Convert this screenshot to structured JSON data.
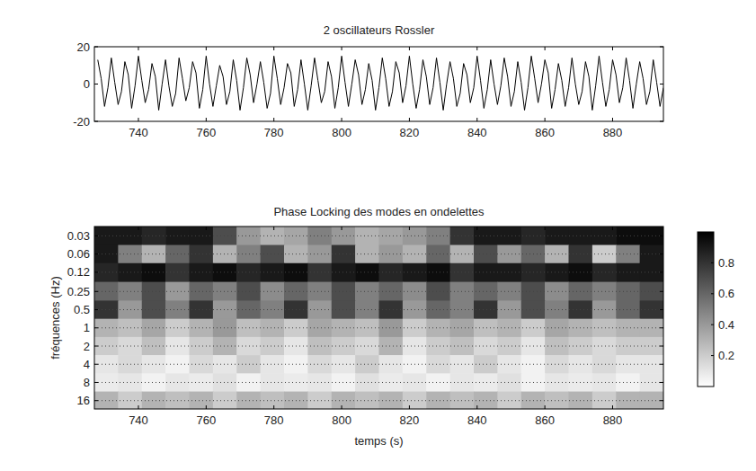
{
  "chart_data": [
    {
      "type": "line",
      "title": "2 oscillateurs Rossler",
      "color": "#000000",
      "grid": false,
      "xlim": [
        727,
        895
      ],
      "xticks": [
        740,
        760,
        780,
        800,
        820,
        840,
        860,
        880
      ],
      "ylim": [
        -20,
        20
      ],
      "yticks": [
        -20,
        0,
        20
      ],
      "x": [
        728,
        729,
        730,
        731,
        732,
        733,
        734,
        735,
        736,
        737,
        738,
        739,
        740,
        741,
        742,
        743,
        744,
        745,
        746,
        747,
        748,
        749,
        750,
        751,
        752,
        753,
        754,
        755,
        756,
        757,
        758,
        759,
        760,
        761,
        762,
        763,
        764,
        765,
        766,
        767,
        768,
        769,
        770,
        771,
        772,
        773,
        774,
        775,
        776,
        777,
        778,
        779,
        780,
        781,
        782,
        783,
        784,
        785,
        786,
        787,
        788,
        789,
        790,
        791,
        792,
        793,
        794,
        795,
        796,
        797,
        798,
        799,
        800,
        801,
        802,
        803,
        804,
        805,
        806,
        807,
        808,
        809,
        810,
        811,
        812,
        813,
        814,
        815,
        816,
        817,
        818,
        819,
        820,
        821,
        822,
        823,
        824,
        825,
        826,
        827,
        828,
        829,
        830,
        831,
        832,
        833,
        834,
        835,
        836,
        837,
        838,
        839,
        840,
        841,
        842,
        843,
        844,
        845,
        846,
        847,
        848,
        849,
        850,
        851,
        852,
        853,
        854,
        855,
        856,
        857,
        858,
        859,
        860,
        861,
        862,
        863,
        864,
        865,
        866,
        867,
        868,
        869,
        870,
        871,
        872,
        873,
        874,
        875,
        876,
        877,
        878,
        879,
        880,
        881,
        882,
        883,
        884,
        885,
        886,
        887,
        888,
        889,
        890,
        891,
        892,
        893,
        894,
        895
      ],
      "values": [
        13,
        3,
        -12,
        -2,
        14,
        1,
        -11,
        -4,
        12,
        5,
        -13,
        -1,
        15,
        2,
        -10,
        -3,
        11,
        4,
        -14,
        0,
        13,
        -1,
        -12,
        -5,
        14,
        3,
        -9,
        -2,
        12,
        6,
        -13,
        -3,
        15,
        0,
        -12,
        -1,
        10,
        4,
        -11,
        -4,
        13,
        2,
        -14,
        -2,
        14,
        5,
        -10,
        0,
        12,
        1,
        -13,
        -5,
        15,
        3,
        -11,
        -2,
        11,
        6,
        -12,
        -3,
        13,
        0,
        -14,
        -1,
        14,
        2,
        -10,
        -4,
        12,
        4,
        -13,
        -2,
        15,
        1,
        -12,
        0,
        13,
        5,
        -11,
        -3,
        11,
        2,
        -14,
        -2,
        14,
        3,
        -12,
        -4,
        12,
        6,
        -10,
        -1,
        15,
        0,
        -13,
        -3,
        13,
        4,
        -11,
        -2,
        14,
        1,
        -14,
        0,
        12,
        3,
        -12,
        -5,
        11,
        5,
        -10,
        -2,
        15,
        2,
        -13,
        -3,
        13,
        0,
        -11,
        -1,
        14,
        4,
        -12,
        -4,
        12,
        1,
        -14,
        -2,
        15,
        3,
        -10,
        0,
        13,
        6,
        -13,
        -3,
        11,
        2,
        -12,
        -2,
        14,
        0,
        -11,
        -4,
        12,
        4,
        -14,
        -1,
        15,
        1,
        -12,
        -3,
        13,
        5,
        -10,
        -2,
        14,
        2,
        -13,
        0,
        12,
        3,
        -11,
        -4,
        13,
        1,
        -12,
        -2
      ]
    },
    {
      "type": "heatmap",
      "title": "Phase Locking des modes en ondelettes",
      "x_label": "temps (s)",
      "y_label": "fréquences (Hz)",
      "log": "y",
      "grid": true,
      "xlim": [
        727,
        895
      ],
      "xticks": [
        740,
        760,
        780,
        800,
        820,
        840,
        860,
        880
      ],
      "ylim": [
        0.021,
        22
      ],
      "yticks": [
        0.03,
        0.06,
        0.12,
        0.25,
        0.5,
        1,
        2,
        4,
        8,
        16
      ],
      "x": [
        730.5,
        737.5,
        744.5,
        751.5,
        758.5,
        765.5,
        772.5,
        779.5,
        786.5,
        793.5,
        800.5,
        807.5,
        814.5,
        821.5,
        828.5,
        835.5,
        842.5,
        849.5,
        856.5,
        863.5,
        870.5,
        877.5,
        884.5,
        891.5
      ],
      "y": [
        0.03,
        0.06,
        0.12,
        0.25,
        0.5,
        1,
        2,
        4,
        8,
        16
      ],
      "values": [
        [
          0.9,
          0.9,
          0.85,
          0.9,
          0.9,
          0.7,
          0.4,
          0.3,
          0.35,
          0.5,
          0.4,
          0.3,
          0.35,
          0.4,
          0.5,
          0.8,
          0.9,
          0.9,
          0.85,
          0.9,
          0.9,
          0.9,
          0.95,
          0.95
        ],
        [
          0.9,
          0.5,
          0.3,
          0.6,
          0.8,
          0.3,
          0.5,
          0.7,
          0.3,
          0.4,
          0.8,
          0.3,
          0.4,
          0.3,
          0.6,
          0.3,
          0.7,
          0.4,
          0.6,
          0.3,
          0.8,
          0.2,
          0.5,
          0.9
        ],
        [
          0.85,
          0.9,
          0.95,
          0.8,
          0.9,
          0.95,
          0.85,
          0.9,
          0.95,
          0.8,
          0.9,
          0.95,
          0.85,
          0.9,
          0.95,
          0.8,
          0.9,
          0.9,
          0.85,
          0.9,
          0.95,
          0.85,
          0.9,
          0.9
        ],
        [
          0.6,
          0.5,
          0.7,
          0.4,
          0.6,
          0.5,
          0.7,
          0.45,
          0.6,
          0.5,
          0.7,
          0.5,
          0.6,
          0.45,
          0.7,
          0.5,
          0.6,
          0.5,
          0.7,
          0.45,
          0.6,
          0.5,
          0.6,
          0.7
        ],
        [
          0.8,
          0.4,
          0.7,
          0.5,
          0.8,
          0.4,
          0.6,
          0.5,
          0.8,
          0.4,
          0.7,
          0.5,
          0.8,
          0.4,
          0.6,
          0.5,
          0.8,
          0.4,
          0.7,
          0.5,
          0.8,
          0.4,
          0.6,
          0.8
        ],
        [
          0.3,
          0.25,
          0.35,
          0.2,
          0.3,
          0.4,
          0.25,
          0.3,
          0.2,
          0.35,
          0.3,
          0.25,
          0.4,
          0.2,
          0.3,
          0.35,
          0.25,
          0.3,
          0.2,
          0.35,
          0.3,
          0.25,
          0.3,
          0.3
        ],
        [
          0.2,
          0.15,
          0.25,
          0.1,
          0.2,
          0.3,
          0.15,
          0.2,
          0.1,
          0.25,
          0.2,
          0.15,
          0.3,
          0.1,
          0.2,
          0.25,
          0.15,
          0.2,
          0.1,
          0.25,
          0.2,
          0.15,
          0.2,
          0.2
        ],
        [
          0.1,
          0.15,
          0.1,
          0.05,
          0.15,
          0.1,
          0.2,
          0.1,
          0.05,
          0.15,
          0.1,
          0.2,
          0.1,
          0.05,
          0.15,
          0.1,
          0.2,
          0.1,
          0.05,
          0.15,
          0.1,
          0.15,
          0.1,
          0.1
        ],
        [
          0.08,
          0.1,
          0.05,
          0.1,
          0.08,
          0.12,
          0.05,
          0.1,
          0.08,
          0.1,
          0.05,
          0.12,
          0.08,
          0.1,
          0.05,
          0.1,
          0.08,
          0.12,
          0.05,
          0.1,
          0.08,
          0.1,
          0.05,
          0.1
        ],
        [
          0.3,
          0.2,
          0.3,
          0.25,
          0.3,
          0.2,
          0.3,
          0.25,
          0.3,
          0.2,
          0.3,
          0.25,
          0.3,
          0.2,
          0.3,
          0.25,
          0.3,
          0.2,
          0.3,
          0.25,
          0.3,
          0.2,
          0.3,
          0.3
        ]
      ],
      "colorbar_lim": [
        0,
        1
      ],
      "colorbar_ticks": [
        0.2,
        0.4,
        0.6,
        0.8
      ]
    }
  ]
}
